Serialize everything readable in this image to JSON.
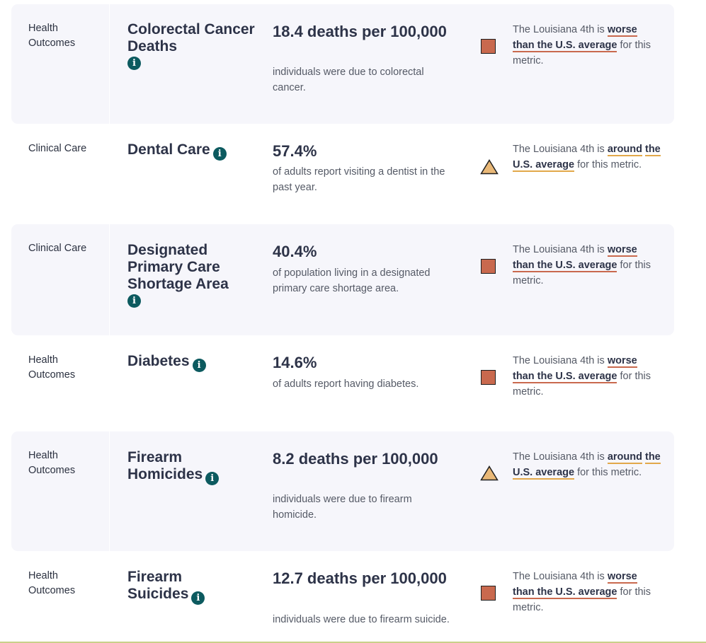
{
  "rows": [
    {
      "category": "Health Outcomes",
      "metric": "Colorectal Cancer Deaths",
      "value": "18.4 deaths per 100,000",
      "description": "individuals were due to colorectal cancer.",
      "comparison_prefix": "The Louisiana 4th is",
      "comparison_status_a": "worse",
      "comparison_status_b": "than the U.S. average",
      "comparison_suffix": "for this metric.",
      "status": "worse"
    },
    {
      "category": "Clinical Care",
      "metric": "Dental Care",
      "value": "57.4%",
      "description": "of adults report visiting a dentist in the past year.",
      "comparison_prefix": "The Louisiana 4th is",
      "comparison_status_a": "around",
      "comparison_status_b": "the U.S. average",
      "comparison_suffix": "for this metric.",
      "status": "around"
    },
    {
      "category": "Clinical Care",
      "metric": "Designated Primary Care Shortage Area",
      "value": "40.4%",
      "description": "of population living in a designated primary care shortage area.",
      "comparison_prefix": "The Louisiana 4th is",
      "comparison_status_a": "worse",
      "comparison_status_b": "than the U.S. average",
      "comparison_suffix": "for this metric.",
      "status": "worse"
    },
    {
      "category": "Health Outcomes",
      "metric": "Diabetes",
      "value": "14.6%",
      "description": "of adults report having diabetes.",
      "comparison_prefix": "The Louisiana 4th is",
      "comparison_status_a": "worse",
      "comparison_status_b": "than the U.S. average",
      "comparison_suffix": "for this metric.",
      "status": "worse"
    },
    {
      "category": "Health Outcomes",
      "metric": "Firearm Homicides",
      "value": "8.2 deaths per 100,000",
      "description": "individuals were due to firearm homicide.",
      "comparison_prefix": "The Louisiana 4th is",
      "comparison_status_a": "around",
      "comparison_status_b": "the U.S. average",
      "comparison_suffix": "for this metric.",
      "status": "around"
    },
    {
      "category": "Health Outcomes",
      "metric": "Firearm Suicides",
      "value": "12.7 deaths per 100,000",
      "description": "individuals were due to firearm suicide.",
      "comparison_prefix": "The Louisiana 4th is",
      "comparison_status_a": "worse",
      "comparison_status_b": "than the U.S. average",
      "comparison_suffix": "for this metric.",
      "status": "worse"
    }
  ],
  "colors": {
    "worse": "#c9694e",
    "around": "#e9b877",
    "info_icon": "#0c5a5f",
    "row_shade": "#f6f6fb"
  },
  "icons": {
    "info": "info-icon",
    "worse": "square-worse-icon",
    "around": "triangle-around-icon"
  }
}
